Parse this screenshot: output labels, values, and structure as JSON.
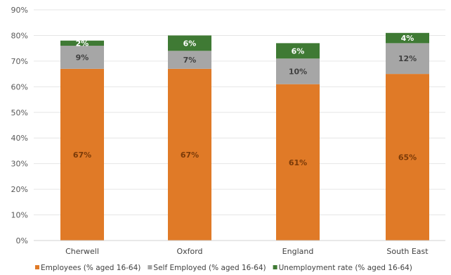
{
  "chart_data": {
    "type": "bar",
    "stacked": true,
    "categories": [
      "Cherwell",
      "Oxford",
      "England",
      "South East"
    ],
    "series": [
      {
        "name": "Employees (% aged 16-64)",
        "values": [
          67,
          67,
          61,
          65
        ],
        "labels": [
          "67%",
          "67%",
          "61%",
          "65%"
        ],
        "color": "#E07A27",
        "label_color": "#7A3A08"
      },
      {
        "name": "Self Employed (% aged 16-64)",
        "values": [
          9,
          7,
          10,
          12
        ],
        "labels": [
          "9%",
          "7%",
          "10%",
          "12%"
        ],
        "color": "#A6A6A6",
        "label_color": "#404040"
      },
      {
        "name": "Unemployment rate (% aged 16-64)",
        "values": [
          2,
          6,
          6,
          4
        ],
        "labels": [
          "2%",
          "6%",
          "6%",
          "4%"
        ],
        "color": "#3F7A34",
        "label_color": "#FFFFFF"
      }
    ],
    "ylim": [
      0,
      90
    ],
    "yticks": [
      0,
      10,
      20,
      30,
      40,
      50,
      60,
      70,
      80,
      90
    ],
    "ytick_labels": [
      "0%",
      "10%",
      "20%",
      "30%",
      "40%",
      "50%",
      "60%",
      "70%",
      "80%",
      "90%"
    ],
    "grid": true,
    "legend_position": "bottom",
    "title": "",
    "xlabel": "",
    "ylabel": ""
  }
}
